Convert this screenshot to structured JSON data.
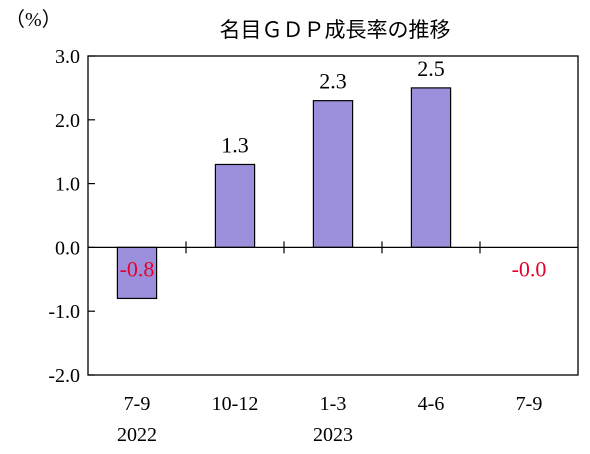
{
  "chart_data": {
    "type": "bar",
    "title": "名目ＧＤＰ成長率の推移",
    "unit_label": "（%）",
    "categories": [
      "7-9",
      "10-12",
      "1-3",
      "4-6",
      "7-9"
    ],
    "year_labels": [
      "2022",
      "",
      "2023",
      "",
      ""
    ],
    "values": [
      -0.8,
      1.3,
      2.3,
      2.5,
      -0.0
    ],
    "data_labels": [
      "-0.8",
      "1.3",
      "2.3",
      "2.5",
      "-0.0"
    ],
    "y_ticks": [
      "3.0",
      "2.0",
      "1.0",
      "0.0",
      "-1.0",
      "-2.0"
    ],
    "ylim": [
      -2.0,
      3.0
    ],
    "grid": false,
    "bar_color": "#9b8fdc",
    "negative_label_color": "#e6002d",
    "positive_label_color": "#000000"
  }
}
